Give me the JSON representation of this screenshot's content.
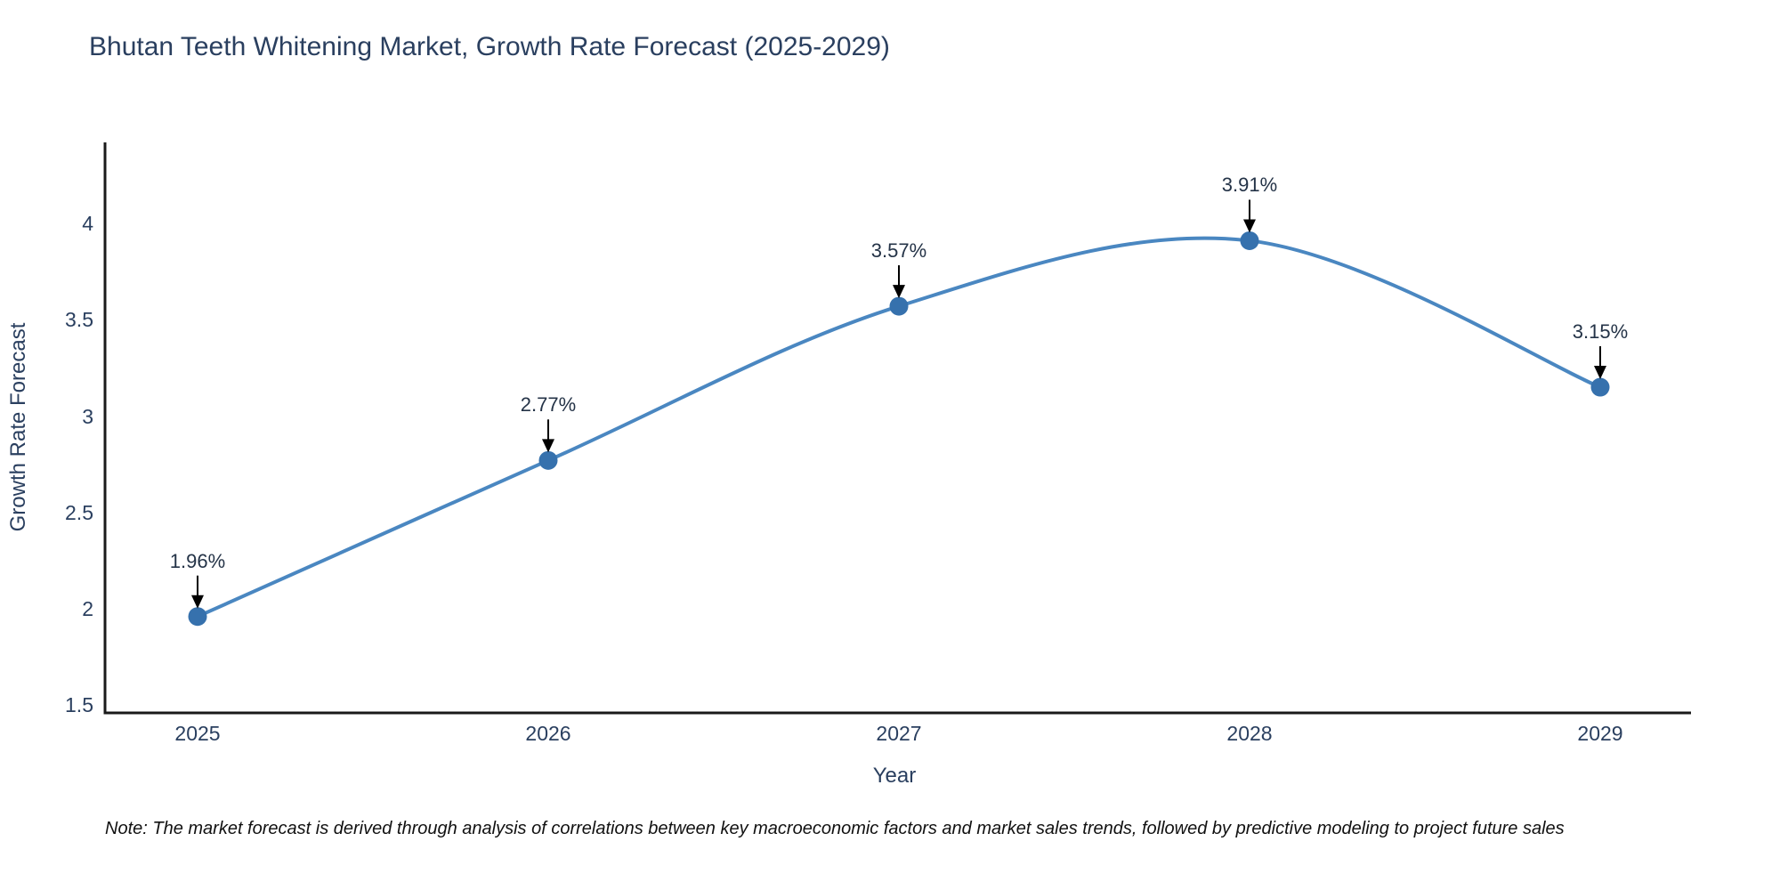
{
  "page": {
    "background_color": "#ffffff"
  },
  "chart_data": {
    "type": "line",
    "line_shape": "spline",
    "title": "Bhutan Teeth Whitening Market, Growth Rate Forecast (2025-2029)",
    "xlabel": "Year",
    "ylabel": "Growth Rate Forecast",
    "x": [
      2025,
      2026,
      2027,
      2028,
      2029
    ],
    "y": [
      1.96,
      2.77,
      3.57,
      3.91,
      3.15
    ],
    "point_labels": [
      "1.96%",
      "2.77%",
      "3.57%",
      "3.91%",
      "3.15%"
    ],
    "yticks": [
      1.5,
      2,
      2.5,
      3,
      3.5,
      4
    ],
    "ylim": [
      1.46,
      4.42
    ],
    "grid": false,
    "legend_position": "none",
    "colors": {
      "line": "#4a87c1",
      "marker": "#3671ad",
      "axis": "#1a1a1a",
      "text": "#2a3f5f",
      "annotation_arrow": "#000000"
    }
  },
  "note": {
    "text": "Note: The market forecast is derived through analysis of correlations between key macroeconomic factors and market sales trends, followed by predictive modeling to project future sales"
  }
}
